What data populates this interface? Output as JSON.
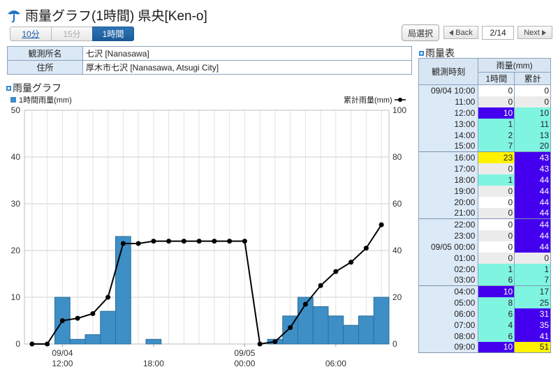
{
  "header": {
    "title": "雨量グラフ(1時間) 県央[Ken-o]"
  },
  "interval_tabs": [
    {
      "label": "10分",
      "state": "link"
    },
    {
      "label": "15分",
      "state": "disabled"
    },
    {
      "label": "1時間",
      "state": "active"
    }
  ],
  "nav": {
    "station_select": "局選択",
    "back": "Back",
    "page": "2/14",
    "next": "Next"
  },
  "station": {
    "name_label": "観測所名",
    "name_value": "七沢 [Nanasawa]",
    "address_label": "住所",
    "address_value": "厚木市七沢 [Nanasawa, Atsugi City]"
  },
  "graph_section": {
    "title": "雨量グラフ"
  },
  "table_section": {
    "title": "雨量表"
  },
  "colors": {
    "bar": "#3d8fc6",
    "line": "#000000",
    "cell_white": "#ffffff",
    "cell_gray": "#ececec",
    "cell_cyan": "#7ff5e1",
    "cell_purple": "#4400ee",
    "cell_yellow": "#fff200"
  },
  "chart_data": {
    "type": "bar+line",
    "legend_left": "1時間雨量(mm)",
    "legend_right": "累計雨量(mm)",
    "y_left": {
      "min": 0,
      "max": 50,
      "ticks": [
        0,
        10,
        20,
        30,
        40,
        50
      ]
    },
    "y_right": {
      "min": 0,
      "max": 100,
      "ticks": [
        0,
        20,
        40,
        60,
        80,
        100
      ]
    },
    "x_labels": [
      {
        "index": 2,
        "line1": "09/04",
        "line2": "12:00"
      },
      {
        "index": 8,
        "line1": "",
        "line2": "18:00"
      },
      {
        "index": 14,
        "line1": "09/05",
        "line2": "00:00"
      },
      {
        "index": 20,
        "line1": "",
        "line2": "06:00"
      }
    ],
    "times": [
      "09/04 10:00",
      "11:00",
      "12:00",
      "13:00",
      "14:00",
      "15:00",
      "16:00",
      "17:00",
      "18:00",
      "19:00",
      "20:00",
      "21:00",
      "22:00",
      "23:00",
      "09/05 00:00",
      "01:00",
      "02:00",
      "03:00",
      "04:00",
      "05:00",
      "06:00",
      "07:00",
      "08:00",
      "09:00"
    ],
    "hourly": [
      0,
      0,
      10,
      1,
      2,
      7,
      23,
      0,
      1,
      0,
      0,
      0,
      0,
      0,
      0,
      0,
      1,
      6,
      10,
      8,
      6,
      4,
      6,
      10
    ],
    "cumulative": [
      0,
      0,
      10,
      11,
      13,
      20,
      43,
      43,
      44,
      44,
      44,
      44,
      44,
      44,
      44,
      0,
      1,
      7,
      17,
      25,
      31,
      35,
      41,
      51
    ]
  },
  "rain_table": {
    "col_time": "観測時刻",
    "col_rain": "雨量(mm)",
    "col_hourly": "1時間",
    "col_cumulative": "累計",
    "rows": [
      {
        "time": "09/04 10:00",
        "h": 0,
        "c": 0,
        "hc": "white",
        "cc": "white"
      },
      {
        "time": "11:00",
        "h": 0,
        "c": 0,
        "hc": "gray",
        "cc": "gray"
      },
      {
        "time": "12:00",
        "h": 10,
        "c": 10,
        "hc": "purple",
        "cc": "cyan"
      },
      {
        "time": "13:00",
        "h": 1,
        "c": 11,
        "hc": "cyan",
        "cc": "cyan"
      },
      {
        "time": "14:00",
        "h": 2,
        "c": 13,
        "hc": "cyan",
        "cc": "cyan"
      },
      {
        "time": "15:00",
        "h": 7,
        "c": 20,
        "hc": "cyan",
        "cc": "cyan"
      },
      {
        "time": "16:00",
        "h": 23,
        "c": 43,
        "hc": "yellow",
        "cc": "purple"
      },
      {
        "time": "17:00",
        "h": 0,
        "c": 43,
        "hc": "gray",
        "cc": "purple"
      },
      {
        "time": "18:00",
        "h": 1,
        "c": 44,
        "hc": "cyan",
        "cc": "purple"
      },
      {
        "time": "19:00",
        "h": 0,
        "c": 44,
        "hc": "gray",
        "cc": "purple"
      },
      {
        "time": "20:00",
        "h": 0,
        "c": 44,
        "hc": "white",
        "cc": "purple"
      },
      {
        "time": "21:00",
        "h": 0,
        "c": 44,
        "hc": "gray",
        "cc": "purple"
      },
      {
        "time": "22:00",
        "h": 0,
        "c": 44,
        "hc": "white",
        "cc": "purple"
      },
      {
        "time": "23:00",
        "h": 0,
        "c": 44,
        "hc": "gray",
        "cc": "purple"
      },
      {
        "time": "09/05 00:00",
        "h": 0,
        "c": 44,
        "hc": "white",
        "cc": "purple"
      },
      {
        "time": "01:00",
        "h": 0,
        "c": 0,
        "hc": "gray",
        "cc": "gray"
      },
      {
        "time": "02:00",
        "h": 1,
        "c": 1,
        "hc": "cyan",
        "cc": "cyan"
      },
      {
        "time": "03:00",
        "h": 6,
        "c": 7,
        "hc": "cyan",
        "cc": "cyan"
      },
      {
        "time": "04:00",
        "h": 10,
        "c": 17,
        "hc": "purple",
        "cc": "cyan"
      },
      {
        "time": "05:00",
        "h": 8,
        "c": 25,
        "hc": "cyan",
        "cc": "cyan"
      },
      {
        "time": "06:00",
        "h": 6,
        "c": 31,
        "hc": "cyan",
        "cc": "purple"
      },
      {
        "time": "07:00",
        "h": 4,
        "c": 35,
        "hc": "cyan",
        "cc": "purple"
      },
      {
        "time": "08:00",
        "h": 6,
        "c": 41,
        "hc": "cyan",
        "cc": "purple"
      },
      {
        "time": "09:00",
        "h": 10,
        "c": 51,
        "hc": "purple",
        "cc": "yellow"
      }
    ]
  }
}
